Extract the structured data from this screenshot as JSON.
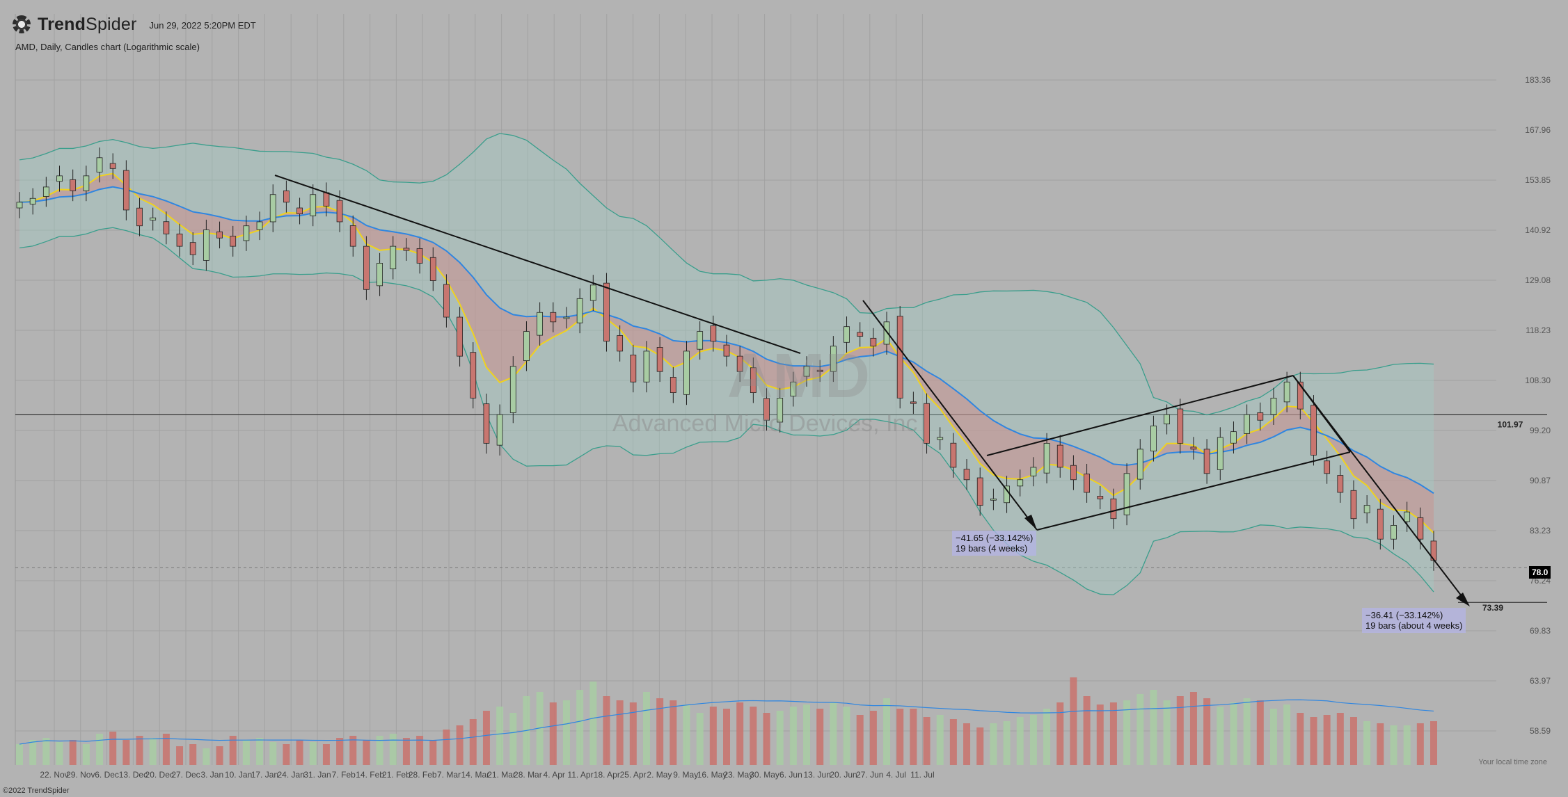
{
  "header": {
    "brand_bold": "Trend",
    "brand_light": "Spider",
    "date": "Jun 29, 2022 5:20PM EDT",
    "subtitle": "AMD, Daily, Candles chart (Logarithmic scale)"
  },
  "watermark": {
    "ticker": "AMD",
    "name": "Advanced Micro Devices, Inc"
  },
  "footer": {
    "copyright": "©2022 TrendSpider",
    "timezone": "Your local time zone"
  },
  "annotations": {
    "measure1": {
      "line1": "−41.65 (−33.142%)",
      "line2": "19 bars (4 weeks)"
    },
    "measure2": {
      "line1": "−36.41 (−33.142%)",
      "line2": "19 bars (about 4 weeks)"
    }
  },
  "colors": {
    "background": "#b3b3b3",
    "bullish": "#a8cca3",
    "bearish": "#c87670",
    "ema_fast": "#f0d21e",
    "ema_slow": "#2f86e0",
    "bollinger": "#3a9e8c"
  },
  "chart_data": {
    "type": "candlestick",
    "scale": "log",
    "y_ticks": [
      "183.36",
      "167.96",
      "153.85",
      "140.92",
      "129.08",
      "118.23",
      "108.30",
      "99.20",
      "90.87",
      "83.23",
      "76.24",
      "69.83",
      "63.97",
      "58.59"
    ],
    "x_ticks": [
      "22. Nov",
      "29. Nov",
      "6. Dec",
      "13. Dec",
      "20. Dec",
      "27. Dec",
      "3. Jan",
      "10. Jan",
      "17. Jan",
      "24. Jan",
      "31. Jan",
      "7. Feb",
      "14. Feb",
      "21. Feb",
      "28. Feb",
      "7. Mar",
      "14. Mar",
      "21. Mar",
      "28. Mar",
      "4. Apr",
      "11. Apr",
      "18. Apr",
      "25. Apr",
      "2. May",
      "9. May",
      "16. May",
      "23. May",
      "30. May",
      "6. Jun",
      "13. Jun",
      "20. Jun",
      "27. Jun",
      "4. Jul",
      "11. Jul"
    ],
    "horizontal_levels": [
      {
        "value": 101.97,
        "label": "101.97"
      },
      {
        "value": 73.39,
        "label": "73.39"
      }
    ],
    "last_price": {
      "value": 78.0,
      "label": "78.0"
    },
    "closes": [
      148,
      149,
      152,
      155,
      151,
      155,
      160,
      157,
      146,
      142,
      144,
      140,
      137,
      135,
      141,
      139,
      137,
      142,
      143,
      150,
      148,
      145,
      150,
      147,
      143,
      137,
      127,
      133,
      137,
      136,
      133,
      129,
      121,
      113,
      105,
      97,
      102,
      111,
      118,
      122,
      120,
      121,
      125,
      128,
      116,
      114,
      108,
      114,
      110,
      106,
      114,
      118,
      116,
      113,
      110,
      106,
      101,
      105,
      108,
      111,
      110,
      115,
      119,
      117,
      115,
      120,
      105,
      104,
      97,
      98,
      93,
      91,
      87,
      88,
      90,
      91,
      93,
      97,
      93,
      91,
      89,
      88,
      85,
      92,
      96,
      100,
      102,
      97,
      96,
      92,
      98,
      99,
      102,
      101,
      105,
      108,
      103,
      95,
      92,
      89,
      85,
      87,
      82,
      84,
      86,
      82,
      79
    ],
    "volume_relative": [
      0.1,
      0.12,
      0.13,
      0.11,
      0.12,
      0.1,
      0.15,
      0.16,
      0.12,
      0.14,
      0.13,
      0.15,
      0.09,
      0.1,
      0.08,
      0.09,
      0.14,
      0.12,
      0.13,
      0.11,
      0.1,
      0.12,
      0.11,
      0.1,
      0.13,
      0.14,
      0.12,
      0.14,
      0.15,
      0.13,
      0.14,
      0.12,
      0.17,
      0.19,
      0.22,
      0.26,
      0.28,
      0.25,
      0.33,
      0.35,
      0.3,
      0.31,
      0.36,
      0.4,
      0.33,
      0.31,
      0.3,
      0.35,
      0.32,
      0.31,
      0.29,
      0.25,
      0.28,
      0.27,
      0.3,
      0.28,
      0.25,
      0.26,
      0.28,
      0.29,
      0.27,
      0.3,
      0.28,
      0.24,
      0.26,
      0.32,
      0.27,
      0.27,
      0.23,
      0.24,
      0.22,
      0.2,
      0.18,
      0.2,
      0.21,
      0.23,
      0.24,
      0.27,
      0.3,
      0.42,
      0.33,
      0.29,
      0.3,
      0.31,
      0.34,
      0.36,
      0.31,
      0.33,
      0.35,
      0.32,
      0.28,
      0.3,
      0.32,
      0.31,
      0.27,
      0.29,
      0.25,
      0.23,
      0.24,
      0.25,
      0.23,
      0.21,
      0.2,
      0.19,
      0.19,
      0.2,
      0.21
    ]
  }
}
